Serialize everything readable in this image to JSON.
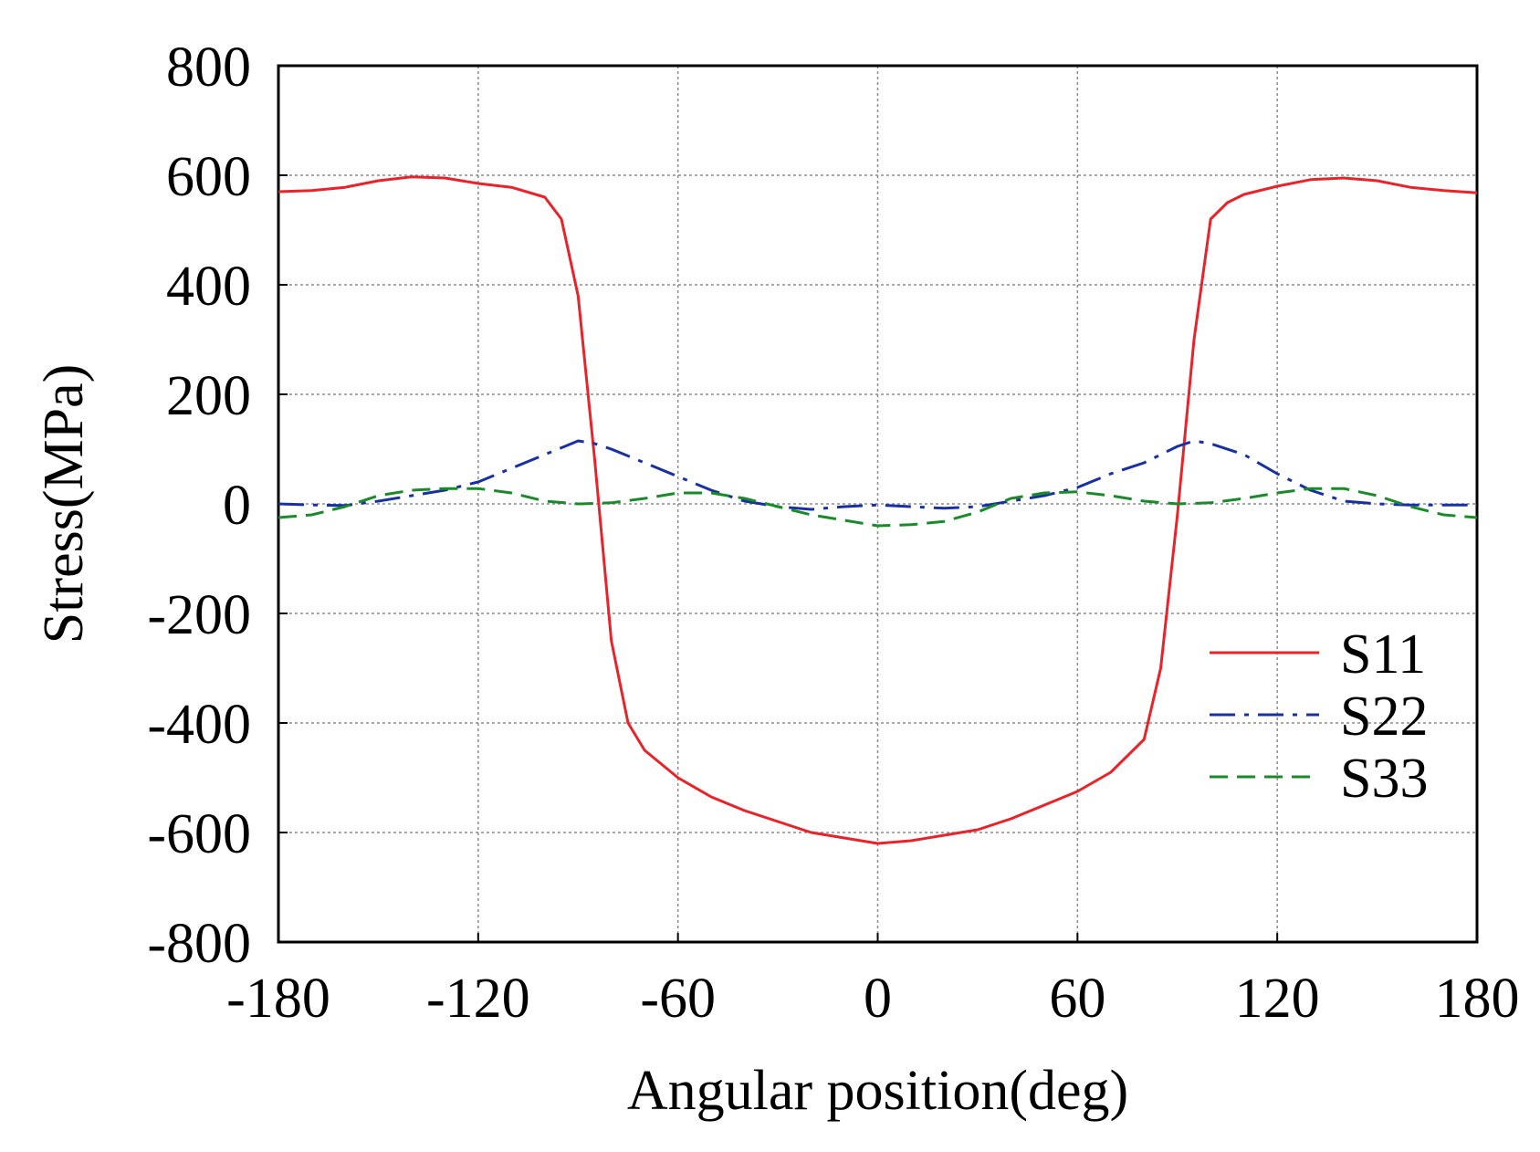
{
  "chart_data": {
    "type": "line",
    "title": "",
    "xlabel": "Angular position(deg)",
    "ylabel": "Stress(MPa)",
    "xlim": [
      -180,
      180
    ],
    "ylim": [
      -800,
      800
    ],
    "xticks": [
      -180,
      -120,
      -60,
      0,
      60,
      120,
      180
    ],
    "yticks": [
      -800,
      -600,
      -400,
      -200,
      0,
      200,
      400,
      600,
      800
    ],
    "xtick_labels": [
      "-180",
      "-120",
      "-60",
      "0",
      "60",
      "120",
      "180"
    ],
    "ytick_labels": [
      "-800",
      "-600",
      "-400",
      "-200",
      "0",
      "200",
      "400",
      "600",
      "800"
    ],
    "grid": true,
    "legend_position": "right",
    "series": [
      {
        "name": "S11",
        "color": "#e8232a",
        "dash": "solid",
        "points": [
          [
            -180,
            570
          ],
          [
            -170,
            572
          ],
          [
            -160,
            578
          ],
          [
            -150,
            590
          ],
          [
            -140,
            597
          ],
          [
            -130,
            595
          ],
          [
            -120,
            585
          ],
          [
            -110,
            578
          ],
          [
            -100,
            560
          ],
          [
            -95,
            520
          ],
          [
            -90,
            380
          ],
          [
            -85,
            80
          ],
          [
            -80,
            -250
          ],
          [
            -75,
            -400
          ],
          [
            -70,
            -450
          ],
          [
            -60,
            -500
          ],
          [
            -50,
            -535
          ],
          [
            -40,
            -560
          ],
          [
            -30,
            -580
          ],
          [
            -20,
            -600
          ],
          [
            -10,
            -610
          ],
          [
            0,
            -620
          ],
          [
            10,
            -615
          ],
          [
            20,
            -605
          ],
          [
            30,
            -595
          ],
          [
            40,
            -575
          ],
          [
            50,
            -550
          ],
          [
            60,
            -525
          ],
          [
            70,
            -490
          ],
          [
            80,
            -430
          ],
          [
            85,
            -300
          ],
          [
            90,
            -20
          ],
          [
            95,
            300
          ],
          [
            100,
            520
          ],
          [
            105,
            550
          ],
          [
            110,
            565
          ],
          [
            120,
            580
          ],
          [
            130,
            592
          ],
          [
            140,
            595
          ],
          [
            150,
            590
          ],
          [
            160,
            578
          ],
          [
            170,
            572
          ],
          [
            180,
            568
          ]
        ]
      },
      {
        "name": "S22",
        "color": "#1830a0",
        "dash": "dashdot",
        "points": [
          [
            -180,
            0
          ],
          [
            -170,
            -2
          ],
          [
            -160,
            -3
          ],
          [
            -150,
            5
          ],
          [
            -140,
            15
          ],
          [
            -130,
            25
          ],
          [
            -120,
            40
          ],
          [
            -110,
            65
          ],
          [
            -100,
            90
          ],
          [
            -90,
            115
          ],
          [
            -85,
            110
          ],
          [
            -80,
            100
          ],
          [
            -70,
            75
          ],
          [
            -60,
            50
          ],
          [
            -50,
            25
          ],
          [
            -40,
            5
          ],
          [
            -30,
            -5
          ],
          [
            -20,
            -10
          ],
          [
            -10,
            -5
          ],
          [
            0,
            -2
          ],
          [
            10,
            -5
          ],
          [
            20,
            -8
          ],
          [
            30,
            -5
          ],
          [
            40,
            5
          ],
          [
            50,
            15
          ],
          [
            60,
            30
          ],
          [
            70,
            55
          ],
          [
            80,
            75
          ],
          [
            90,
            105
          ],
          [
            95,
            115
          ],
          [
            100,
            110
          ],
          [
            110,
            90
          ],
          [
            120,
            55
          ],
          [
            130,
            25
          ],
          [
            140,
            5
          ],
          [
            150,
            0
          ],
          [
            160,
            -2
          ],
          [
            170,
            -2
          ],
          [
            180,
            -2
          ]
        ]
      },
      {
        "name": "S33",
        "color": "#1a8a2a",
        "dash": "dashed",
        "points": [
          [
            -180,
            -25
          ],
          [
            -170,
            -20
          ],
          [
            -160,
            -5
          ],
          [
            -150,
            15
          ],
          [
            -140,
            25
          ],
          [
            -130,
            28
          ],
          [
            -120,
            28
          ],
          [
            -110,
            20
          ],
          [
            -100,
            5
          ],
          [
            -90,
            0
          ],
          [
            -80,
            2
          ],
          [
            -70,
            10
          ],
          [
            -60,
            20
          ],
          [
            -50,
            20
          ],
          [
            -40,
            10
          ],
          [
            -30,
            -5
          ],
          [
            -20,
            -20
          ],
          [
            -10,
            -30
          ],
          [
            0,
            -40
          ],
          [
            10,
            -38
          ],
          [
            20,
            -32
          ],
          [
            30,
            -15
          ],
          [
            40,
            10
          ],
          [
            50,
            20
          ],
          [
            60,
            22
          ],
          [
            70,
            15
          ],
          [
            80,
            5
          ],
          [
            90,
            0
          ],
          [
            100,
            2
          ],
          [
            110,
            10
          ],
          [
            120,
            20
          ],
          [
            130,
            28
          ],
          [
            140,
            28
          ],
          [
            150,
            15
          ],
          [
            160,
            -5
          ],
          [
            170,
            -20
          ],
          [
            180,
            -25
          ]
        ]
      }
    ]
  }
}
